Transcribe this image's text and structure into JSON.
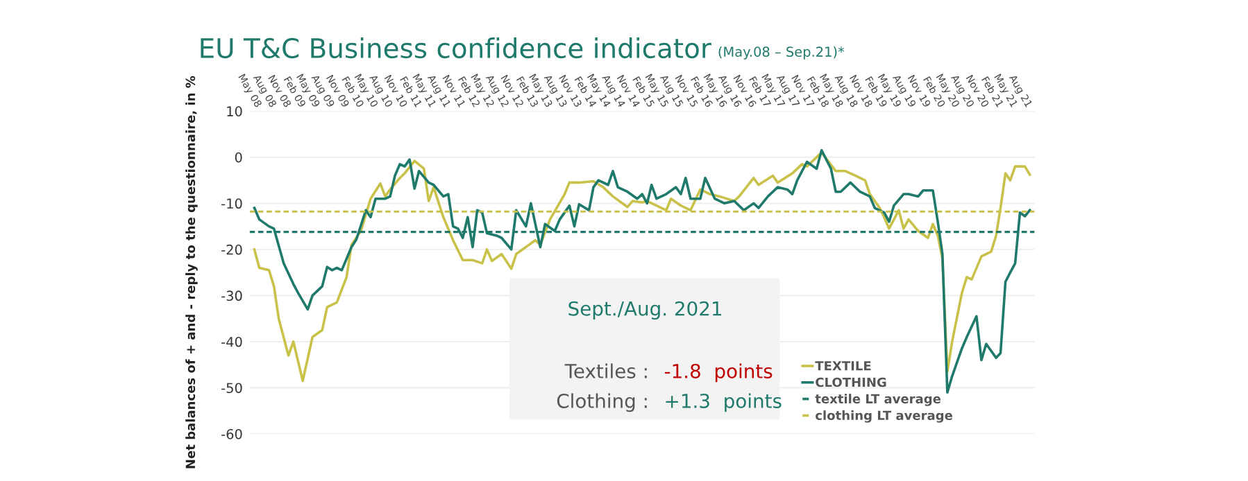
{
  "chart_data": {
    "type": "line",
    "title": "EU T&C Business confidence indicator",
    "subtitle": "(May.08 – Sep.21)*",
    "ylabel": "Net balances of + and - reply to the questionnaire, in %",
    "annotations": [
      "Sept./Aug. 2021",
      "Textiles :",
      "-1.8  points",
      "Clothing :",
      "+1.3  points"
    ],
    "series": [
      {
        "name": "TEXTILE",
        "color": "#c9c24a",
        "x": [
          "2008-05",
          "2008-06",
          "2008-08",
          "2008-09",
          "2008-10",
          "2008-12",
          "2009-01",
          "2009-03",
          "2009-05",
          "2009-07",
          "2009-08",
          "2009-10",
          "2009-12",
          "2010-01",
          "2010-03",
          "2010-05",
          "2010-07",
          "2010-08",
          "2010-09",
          "2010-11",
          "2010-12",
          "2011-02",
          "2011-04",
          "2011-05",
          "2011-06",
          "2011-08",
          "2011-10",
          "2011-12",
          "2012-02",
          "2012-04",
          "2012-05",
          "2012-06",
          "2012-08",
          "2012-10",
          "2012-11",
          "2013-03",
          "2013-04",
          "2013-06",
          "2013-09",
          "2013-10",
          "2013-12",
          "2014-03",
          "2014-05",
          "2014-07",
          "2014-10",
          "2014-11",
          "2015-01",
          "2015-02",
          "2015-06",
          "2015-07",
          "2015-09",
          "2015-11",
          "2016-01",
          "2016-03",
          "2016-05",
          "2016-08",
          "2016-09",
          "2016-12",
          "2017-01",
          "2017-04",
          "2017-05",
          "2017-08",
          "2017-10",
          "2017-11",
          "2018-02",
          "2018-05",
          "2018-07",
          "2018-09",
          "2018-11",
          "2018-12",
          "2019-02",
          "2019-03",
          "2019-04",
          "2019-06",
          "2019-07",
          "2019-08",
          "2019-10",
          "2019-12",
          "2020-01",
          "2020-02",
          "2020-03",
          "2020-04",
          "2020-05",
          "2020-07",
          "2020-08",
          "2020-09",
          "2020-11",
          "2021-01",
          "2021-02",
          "2021-03",
          "2021-04",
          "2021-05",
          "2021-06",
          "2021-08",
          "2021-09"
        ],
        "values": [
          -20,
          -24,
          -24.5,
          -28,
          -35,
          -43,
          -40,
          -48.5,
          -39,
          -37.5,
          -32.5,
          -31.5,
          -26,
          -19,
          -16,
          -9,
          -5.7,
          -8.5,
          -7,
          -4.5,
          -3.5,
          -0.8,
          -2.5,
          -9.5,
          -6.5,
          -13,
          -18,
          -22.3,
          -22.3,
          -23,
          -20,
          -22.5,
          -21,
          -24.2,
          -21,
          -18,
          -19,
          -13.5,
          -8,
          -5.5,
          -5.5,
          -5.2,
          -6.5,
          -8.5,
          -10.8,
          -9.5,
          -9.8,
          -9.5,
          -11.5,
          -9,
          -10.5,
          -11.5,
          -7,
          -8,
          -8.5,
          -9.5,
          -8.5,
          -4.5,
          -6,
          -4,
          -5.5,
          -3.5,
          -1.5,
          -2,
          1,
          -3,
          -3,
          -4,
          -5,
          -8,
          -11,
          -13,
          -15.5,
          -11.5,
          -15.5,
          -13.5,
          -16,
          -17.5,
          -14.5,
          -17,
          -22,
          -46.5,
          -40,
          -29.5,
          -26,
          -26.5,
          -21.5,
          -20.5,
          -17,
          -11,
          -3.5,
          -5,
          -2,
          -2,
          -3.8
        ]
      },
      {
        "name": "CLOTHING",
        "color": "#1f7a6c",
        "x": [
          "2008-05",
          "2008-06",
          "2008-08",
          "2008-09",
          "2008-11",
          "2009-01",
          "2009-02",
          "2009-04",
          "2009-05",
          "2009-07",
          "2009-08",
          "2009-09",
          "2009-10",
          "2009-11",
          "2010-01",
          "2010-02",
          "2010-04",
          "2010-05",
          "2010-06",
          "2010-08",
          "2010-09",
          "2010-10",
          "2010-11",
          "2010-12",
          "2011-01",
          "2011-02",
          "2011-03",
          "2011-05",
          "2011-06",
          "2011-08",
          "2011-09",
          "2011-10",
          "2011-11",
          "2011-12",
          "2012-01",
          "2012-02",
          "2012-03",
          "2012-04",
          "2012-05",
          "2012-07",
          "2012-08",
          "2012-10",
          "2012-11",
          "2013-01",
          "2013-02",
          "2013-04",
          "2013-05",
          "2013-07",
          "2013-08",
          "2013-10",
          "2013-11",
          "2013-12",
          "2014-02",
          "2014-03",
          "2014-04",
          "2014-06",
          "2014-07",
          "2014-08",
          "2014-10",
          "2014-12",
          "2015-01",
          "2015-02",
          "2015-03",
          "2015-04",
          "2015-06",
          "2015-08",
          "2015-09",
          "2015-10",
          "2015-11",
          "2016-01",
          "2016-02",
          "2016-04",
          "2016-06",
          "2016-08",
          "2016-10",
          "2016-12",
          "2017-01",
          "2017-03",
          "2017-05",
          "2017-07",
          "2017-08",
          "2017-09",
          "2017-11",
          "2018-01",
          "2018-02",
          "2018-04",
          "2018-05",
          "2018-06",
          "2018-08",
          "2018-10",
          "2018-12",
          "2019-01",
          "2019-03",
          "2019-04",
          "2019-05",
          "2019-07",
          "2019-08",
          "2019-10",
          "2019-11",
          "2020-01",
          "2020-02",
          "2020-03",
          "2020-04",
          "2020-05",
          "2020-07",
          "2020-08",
          "2020-10",
          "2020-11",
          "2020-12",
          "2021-02",
          "2021-03",
          "2021-04",
          "2021-05",
          "2021-06",
          "2021-07",
          "2021-08",
          "2021-09"
        ],
        "values": [
          -11,
          -13.5,
          -15,
          -15.5,
          -23,
          -27.5,
          -29.5,
          -33,
          -30,
          -28,
          -23.8,
          -24.5,
          -24,
          -24.5,
          -19.5,
          -17.8,
          -11.5,
          -13,
          -9,
          -9,
          -8.5,
          -4,
          -1.5,
          -2,
          -0.5,
          -6.8,
          -3,
          -5.5,
          -6,
          -8.5,
          -8,
          -15,
          -15.5,
          -17.5,
          -13,
          -19.5,
          -11.5,
          -12,
          -16.5,
          -17,
          -17.5,
          -20,
          -11.5,
          -15,
          -10,
          -19.5,
          -14.5,
          -16,
          -13.5,
          -10.5,
          -15,
          -10.2,
          -11.5,
          -6.5,
          -5,
          -6,
          -3,
          -6.5,
          -7.5,
          -9,
          -8,
          -10,
          -6,
          -9,
          -8,
          -6.5,
          -8,
          -4.5,
          -9,
          -9,
          -4.5,
          -9,
          -10,
          -9.5,
          -11.5,
          -10,
          -11,
          -8.5,
          -6.5,
          -7,
          -8,
          -5,
          -1,
          -2.5,
          1.5,
          -2.5,
          -7.5,
          -7.5,
          -5.5,
          -7.5,
          -8.5,
          -11,
          -12,
          -14,
          -10.5,
          -8,
          -8,
          -8.5,
          -7.2,
          -7.2,
          -14,
          -21,
          -51,
          -47.5,
          -41.5,
          -39,
          -34.5,
          -44,
          -40.5,
          -43.5,
          -42.5,
          -27,
          -25,
          -23,
          -12,
          -12.8,
          -11.5
        ]
      }
    ],
    "ref_lines": [
      {
        "axis": "y",
        "value": -16.2,
        "label": "textile LT average",
        "color": "#1f7a6c",
        "line_style": "dashed"
      },
      {
        "axis": "y",
        "value": -11.8,
        "label": "clothing LT average",
        "color": "#c9c24a",
        "line_style": "dashed"
      }
    ],
    "xlim": [
      "2008-04",
      "2021-10"
    ],
    "xticks": [
      {
        "value": "2008-05",
        "label": "May 08"
      },
      {
        "value": "2008-08",
        "label": "Aug 08"
      },
      {
        "value": "2008-11",
        "label": "Nov 08"
      },
      {
        "value": "2009-02",
        "label": "Feb 09"
      },
      {
        "value": "2009-05",
        "label": "May 09"
      },
      {
        "value": "2009-08",
        "label": "Aug 09"
      },
      {
        "value": "2009-11",
        "label": "Nov 09"
      },
      {
        "value": "2010-02",
        "label": "Feb 10"
      },
      {
        "value": "2010-05",
        "label": "May 10"
      },
      {
        "value": "2010-08",
        "label": "Aug 10"
      },
      {
        "value": "2010-11",
        "label": "Nov 10"
      },
      {
        "value": "2011-02",
        "label": "Feb 11"
      },
      {
        "value": "2011-05",
        "label": "May 11"
      },
      {
        "value": "2011-08",
        "label": "Aug 11"
      },
      {
        "value": "2011-11",
        "label": "Nov 11"
      },
      {
        "value": "2012-02",
        "label": "Feb 12"
      },
      {
        "value": "2012-05",
        "label": "May 12"
      },
      {
        "value": "2012-08",
        "label": "Aug 12"
      },
      {
        "value": "2012-11",
        "label": "Nov 12"
      },
      {
        "value": "2013-02",
        "label": "Feb 13"
      },
      {
        "value": "2013-05",
        "label": "May 13"
      },
      {
        "value": "2013-08",
        "label": "Aug 13"
      },
      {
        "value": "2013-11",
        "label": "Nov 13"
      },
      {
        "value": "2014-02",
        "label": "Feb 14"
      },
      {
        "value": "2014-05",
        "label": "May 14"
      },
      {
        "value": "2014-08",
        "label": "Aug 14"
      },
      {
        "value": "2014-11",
        "label": "Nov 14"
      },
      {
        "value": "2015-02",
        "label": "Feb 15"
      },
      {
        "value": "2015-05",
        "label": "May 15"
      },
      {
        "value": "2015-08",
        "label": "Aug 15"
      },
      {
        "value": "2015-11",
        "label": "Nov 15"
      },
      {
        "value": "2016-02",
        "label": "Feb 16"
      },
      {
        "value": "2016-05",
        "label": "May 16"
      },
      {
        "value": "2016-08",
        "label": "Aug 16"
      },
      {
        "value": "2016-11",
        "label": "Nov 16"
      },
      {
        "value": "2017-02",
        "label": "Feb 17"
      },
      {
        "value": "2017-05",
        "label": "May 17"
      },
      {
        "value": "2017-08",
        "label": "Aug 17"
      },
      {
        "value": "2017-11",
        "label": "Nov 17"
      },
      {
        "value": "2018-02",
        "label": "Feb 18"
      },
      {
        "value": "2018-05",
        "label": "May 18"
      },
      {
        "value": "2018-08",
        "label": "Aug 18"
      },
      {
        "value": "2018-11",
        "label": "Nov 18"
      },
      {
        "value": "2019-02",
        "label": "Feb 19"
      },
      {
        "value": "2019-05",
        "label": "May 19"
      },
      {
        "value": "2019-08",
        "label": "Aug 19"
      },
      {
        "value": "2019-11",
        "label": "Nov 19"
      },
      {
        "value": "2020-02",
        "label": "Feb 20"
      },
      {
        "value": "2020-05",
        "label": "May 20"
      },
      {
        "value": "2020-08",
        "label": "Aug 20"
      },
      {
        "value": "2020-11",
        "label": "Nov 20"
      },
      {
        "value": "2021-02",
        "label": "Feb 21"
      },
      {
        "value": "2021-05",
        "label": "May 21"
      },
      {
        "value": "2021-08",
        "label": "Aug 21"
      }
    ],
    "ylim": [
      -60,
      10
    ],
    "yticks": [
      -60,
      -50,
      -40,
      -30,
      -20,
      -10,
      0,
      10
    ],
    "grid": "y",
    "legend": "bottom right",
    "line_style": "solid",
    "marker": "none"
  }
}
